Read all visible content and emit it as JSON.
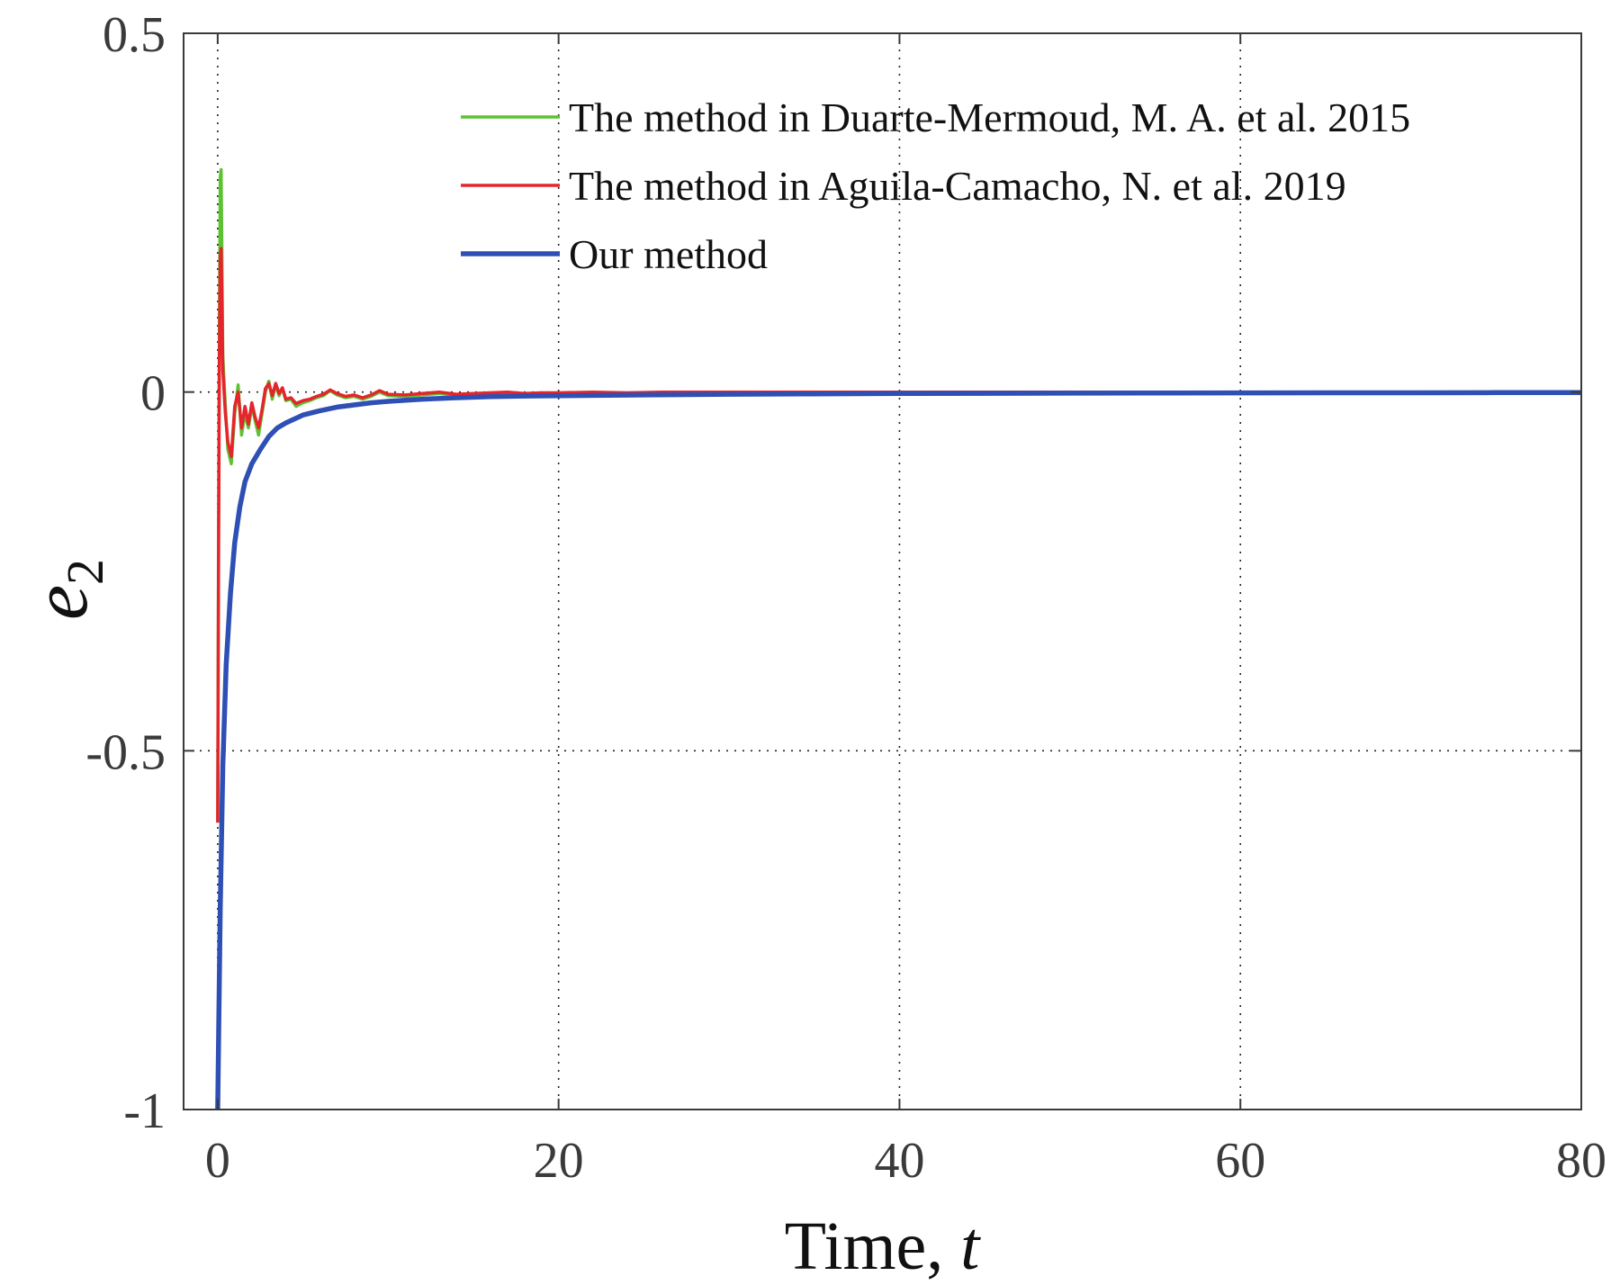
{
  "chart_data": {
    "type": "line",
    "title": "",
    "xlabel": "Time, ",
    "xlabel_var": "t",
    "ylabel_base": "e",
    "ylabel_sub": "2",
    "xlim": [
      -2,
      80
    ],
    "ylim": [
      -1,
      0.5
    ],
    "xticks": [
      0,
      20,
      40,
      60,
      80
    ],
    "xtick_labels": [
      "0",
      "20",
      "40",
      "60",
      "80"
    ],
    "yticks": [
      -1,
      -0.5,
      0,
      0.5
    ],
    "ytick_labels": [
      "-1",
      "-0.5",
      "0",
      "0.5"
    ],
    "grid": true,
    "legend_position": "top-right",
    "series": [
      {
        "name": "The method in Duarte-Mermoud, M. A. et al. 2015",
        "color": "#5cc232",
        "x": [
          0,
          0.05,
          0.1,
          0.15,
          0.2,
          0.3,
          0.45,
          0.6,
          0.8,
          1.0,
          1.2,
          1.4,
          1.6,
          1.8,
          2.0,
          2.2,
          2.4,
          2.6,
          2.8,
          3.0,
          3.2,
          3.4,
          3.6,
          3.8,
          4.0,
          4.3,
          4.6,
          5.0,
          5.4,
          5.8,
          6.2,
          6.6,
          7.0,
          7.5,
          8.0,
          8.5,
          9.0,
          9.5,
          10.0,
          11.0,
          12.0,
          13.0,
          14.0,
          15.0,
          16.0,
          17.0,
          18.0,
          19.0,
          20.0,
          22,
          24,
          26,
          28,
          30,
          32,
          34,
          36,
          38,
          40,
          45,
          50,
          55,
          60,
          65,
          70,
          75,
          80
        ],
        "y": [
          -0.6,
          -0.2,
          0.1,
          0.3,
          0.31,
          0.05,
          -0.02,
          -0.08,
          -0.1,
          -0.03,
          0.01,
          -0.06,
          -0.03,
          -0.05,
          -0.02,
          -0.04,
          -0.06,
          -0.03,
          0.0,
          0.015,
          -0.01,
          0.01,
          -0.005,
          0.005,
          -0.012,
          -0.01,
          -0.02,
          -0.015,
          -0.012,
          -0.008,
          -0.005,
          0.002,
          -0.004,
          -0.008,
          -0.006,
          -0.01,
          -0.006,
          0.0,
          -0.005,
          -0.006,
          -0.004,
          -0.002,
          -0.004,
          -0.003,
          -0.002,
          -0.001,
          -0.003,
          -0.002,
          -0.002,
          -0.001,
          -0.002,
          -0.001,
          -0.001,
          -0.001,
          -0.001,
          -0.001,
          0.0,
          -0.001,
          0.0,
          0.0,
          0.0,
          0.0,
          0.0,
          0.0,
          0.0,
          0.0,
          0.0
        ]
      },
      {
        "name": "The method in Aguila-Camacho, N. et al. 2019",
        "color": "#e5242b",
        "x": [
          0,
          0.05,
          0.1,
          0.15,
          0.2,
          0.3,
          0.45,
          0.6,
          0.8,
          1.0,
          1.2,
          1.4,
          1.6,
          1.8,
          2.0,
          2.2,
          2.4,
          2.6,
          2.8,
          3.0,
          3.2,
          3.4,
          3.6,
          3.8,
          4.0,
          4.3,
          4.6,
          5.0,
          5.4,
          5.8,
          6.2,
          6.6,
          7.0,
          7.5,
          8.0,
          8.5,
          9.0,
          9.5,
          10.0,
          11.0,
          12.0,
          13.0,
          14.0,
          15.0,
          16.0,
          17.0,
          18.0,
          19.0,
          20.0,
          22,
          24,
          26,
          28,
          30,
          32,
          34,
          36,
          38,
          40,
          45,
          50,
          55,
          60,
          65,
          70,
          75,
          80
        ],
        "y": [
          -0.6,
          -0.25,
          0.05,
          0.19,
          0.2,
          0.03,
          -0.03,
          -0.07,
          -0.09,
          -0.02,
          0.0,
          -0.05,
          -0.02,
          -0.045,
          -0.015,
          -0.035,
          -0.05,
          -0.025,
          0.005,
          0.012,
          -0.005,
          0.012,
          -0.002,
          0.006,
          -0.01,
          -0.008,
          -0.016,
          -0.012,
          -0.01,
          -0.006,
          -0.003,
          0.003,
          -0.002,
          -0.006,
          -0.004,
          -0.008,
          -0.004,
          0.002,
          -0.003,
          -0.004,
          -0.002,
          0.0,
          -0.003,
          -0.002,
          -0.001,
          0.0,
          -0.002,
          -0.001,
          -0.001,
          0.0,
          -0.001,
          0.0,
          0.0,
          0.0,
          0.0,
          0.0,
          0.0,
          0.0,
          0.0,
          0.0,
          0.0,
          0.0,
          0.0,
          0.0,
          0.0,
          0.0,
          0.0
        ]
      },
      {
        "name": "Our method",
        "color": "#2e4fb4",
        "x": [
          0,
          0.15,
          0.3,
          0.5,
          0.75,
          1.0,
          1.3,
          1.6,
          2.0,
          2.5,
          3.0,
          3.5,
          4.0,
          5.0,
          6.0,
          7.0,
          8.0,
          9.0,
          10.0,
          12.0,
          14.0,
          16.0,
          18.0,
          20.0,
          25.0,
          30.0,
          35.0,
          40.0,
          45.0,
          50.0,
          55.0,
          60.0,
          65.0,
          70.0,
          75.0,
          80.0
        ],
        "y": [
          -1.0,
          -0.72,
          -0.52,
          -0.38,
          -0.28,
          -0.21,
          -0.16,
          -0.125,
          -0.1,
          -0.08,
          -0.062,
          -0.05,
          -0.043,
          -0.032,
          -0.026,
          -0.021,
          -0.018,
          -0.015,
          -0.013,
          -0.01,
          -0.008,
          -0.0065,
          -0.0055,
          -0.005,
          -0.004,
          -0.003,
          -0.0025,
          -0.002,
          -0.0018,
          -0.0015,
          -0.0013,
          -0.0012,
          -0.001,
          -0.001,
          -0.0008,
          -0.0008
        ]
      }
    ]
  }
}
